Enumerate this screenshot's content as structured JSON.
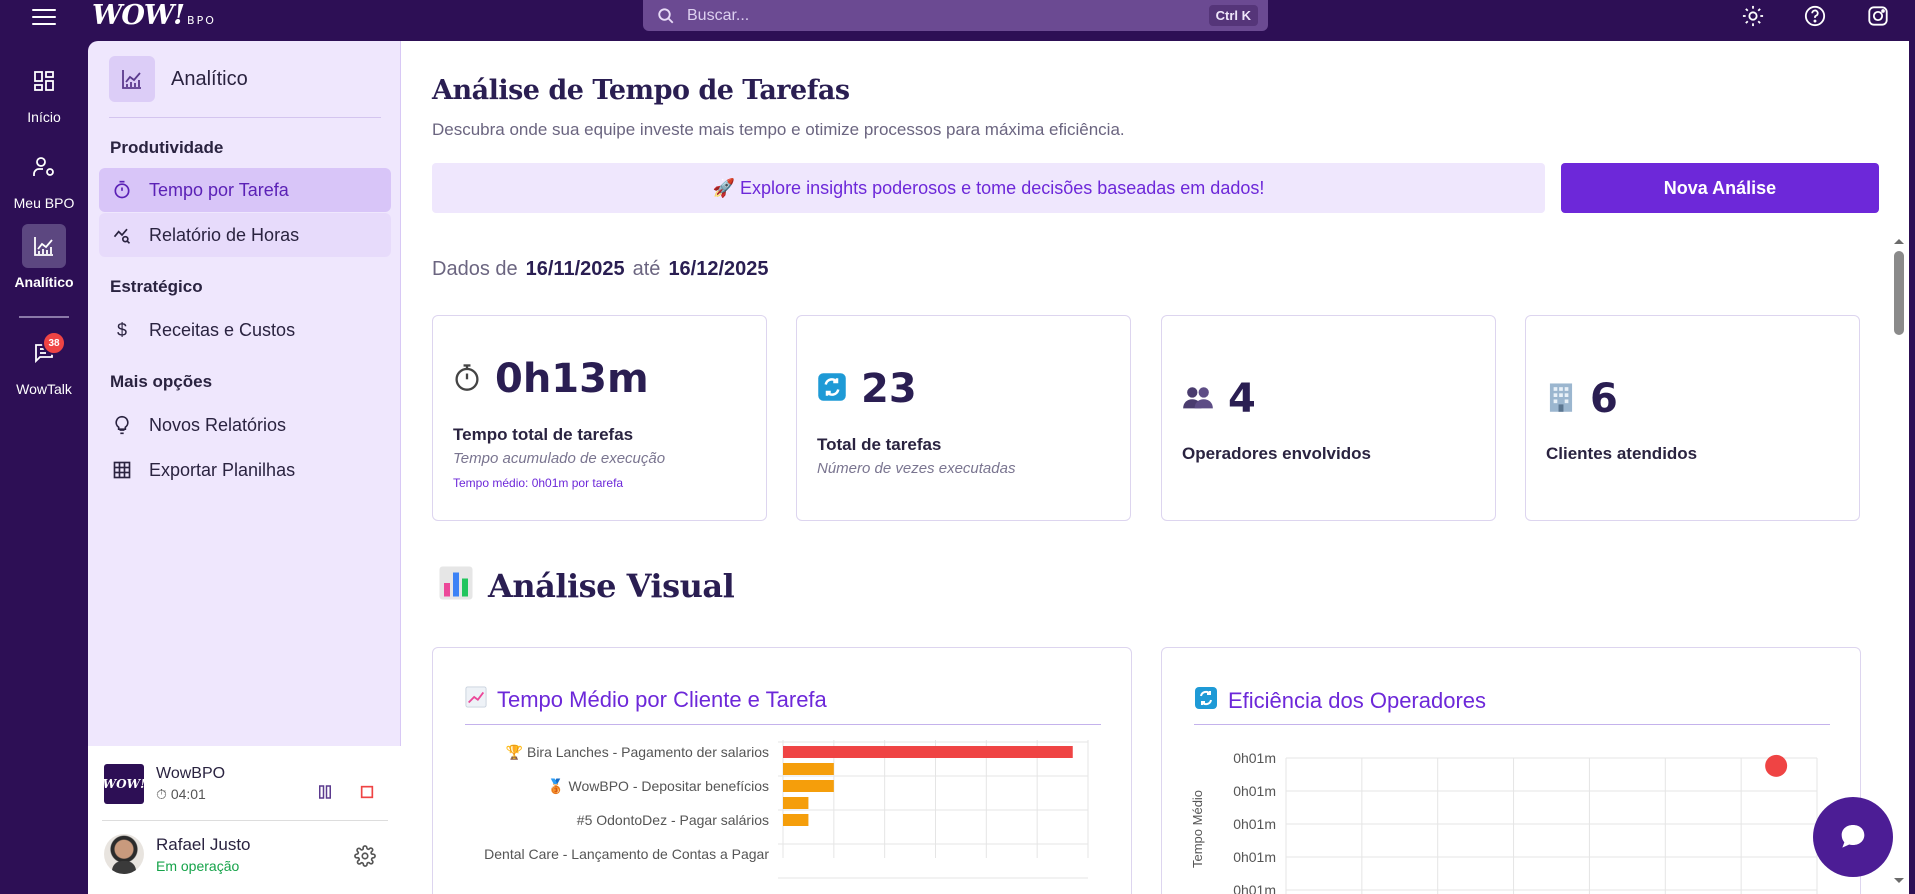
{
  "header": {
    "logo_text": "WOW!",
    "logo_sub": "BPO",
    "search_placeholder": "Buscar...",
    "search_shortcut": "Ctrl K",
    "icons": [
      "sun-icon",
      "help-icon",
      "instagram-icon"
    ]
  },
  "rail": {
    "items": [
      {
        "label": "Início",
        "icon": "grid-icon"
      },
      {
        "label": "Meu BPO",
        "icon": "user-gear-icon"
      },
      {
        "label": "Analítico",
        "icon": "chart-line-icon",
        "active": true
      },
      {
        "label": "WowTalk",
        "icon": "chat-icon",
        "badge": "38"
      }
    ]
  },
  "panel": {
    "title": "Analítico",
    "sections": [
      {
        "label": "Produtividade",
        "items": [
          {
            "label": "Tempo por Tarefa",
            "active": true
          },
          {
            "label": "Relatório de Horas"
          }
        ]
      },
      {
        "label": "Estratégico",
        "items": [
          {
            "label": "Receitas e Custos"
          }
        ]
      },
      {
        "label": "Mais opções",
        "items": [
          {
            "label": "Novos Relatórios"
          },
          {
            "label": "Exportar Planilhas"
          }
        ]
      }
    ],
    "workspace": {
      "name": "WowBPO",
      "logo_text": "WOW!",
      "timer": "04:01"
    },
    "user": {
      "name": "Rafael Justo",
      "status": "Em operação"
    }
  },
  "main": {
    "title": "Análise de Tempo de Tarefas",
    "subtitle": "Descubra onde sua equipe investe mais tempo e otimize processos para máxima eficiência.",
    "insight": "🚀 Explore insights poderosos e tome decisões baseadas em dados!",
    "new_button": "Nova Análise",
    "date_prefix": "Dados de",
    "date_from": "16/11/2025",
    "date_sep": "até",
    "date_to": "16/12/2025",
    "stats": [
      {
        "icon": "stopwatch-icon",
        "value": "0h13m",
        "label": "Tempo total de tarefas",
        "sublabel": "Tempo acumulado de execução",
        "note": "Tempo médio: 0h01m por tarefa"
      },
      {
        "icon": "repeat-icon",
        "value": "23",
        "label": "Total de tarefas",
        "sublabel": "Número de vezes executadas"
      },
      {
        "icon": "people-icon",
        "value": "4",
        "label": "Operadores envolvidos"
      },
      {
        "icon": "building-icon",
        "value": "6",
        "label": "Clientes atendidos"
      }
    ],
    "visual_title": "Análise Visual",
    "charts": [
      {
        "title": "Tempo Médio por Cliente e Tarefa",
        "icon": "chart-up-icon"
      },
      {
        "title": "Eficiência dos Operadores",
        "icon": "repeat-icon"
      }
    ]
  },
  "chart_data": [
    {
      "type": "bar",
      "title": "Tempo Médio por Cliente e Tarefa",
      "categories": [
        "🏆 Bira Lanches - Pagamento der salarios",
        "",
        "🥉 WowBPO - Depositar benefícios",
        "",
        "#5 OdontoDez - Pagar salários",
        "Dental Care - Lançamento de Contas a Pagar"
      ],
      "values": [
        5.7,
        1.0,
        1.0,
        0.5,
        0.5,
        0
      ],
      "colors": [
        "#ef4444",
        "#f59e0b",
        "#f59e0b",
        "#f59e0b",
        "#f59e0b",
        "#f59e0b"
      ],
      "xlim": [
        0,
        6
      ]
    },
    {
      "type": "scatter",
      "title": "Eficiência dos Operadores",
      "ylabel": "Tempo Médio",
      "y_ticks": [
        "0h01m",
        "0h01m",
        "0h01m",
        "0h01m",
        "0h01m"
      ],
      "points": [
        {
          "x": 6,
          "y": 1.0
        }
      ],
      "xlim": [
        0,
        6.5
      ],
      "ylim": [
        0,
        1.05
      ],
      "color": "#ef4444"
    }
  ]
}
